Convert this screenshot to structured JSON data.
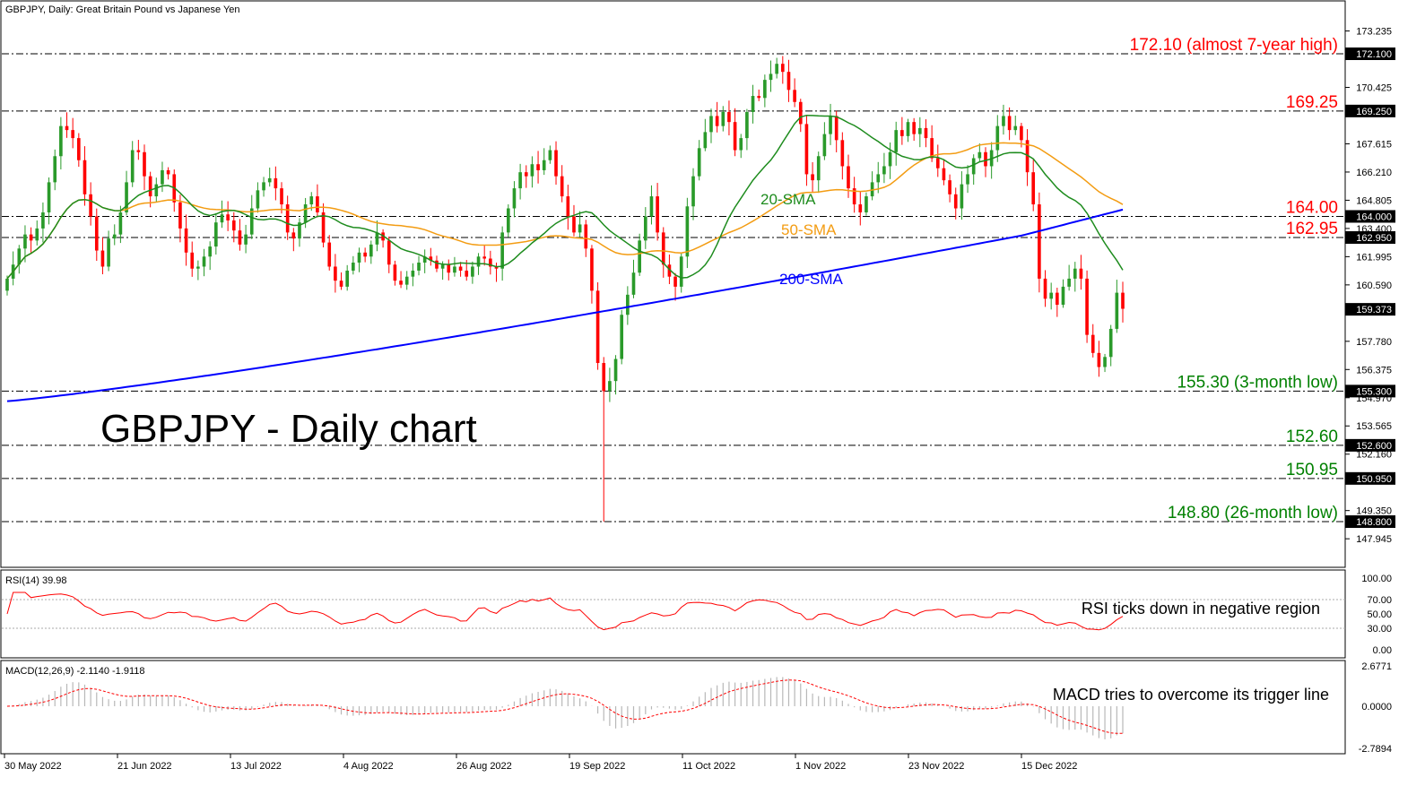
{
  "header": {
    "title": "GBPJPY, Daily:  Great Britain Pound vs Japanese Yen"
  },
  "main_label": "GBPJPY - Daily chart",
  "price_scale": [
    "173.235",
    "172.100",
    "170.425",
    "169.250",
    "167.615",
    "166.210",
    "164.805",
    "164.000",
    "163.400",
    "162.950",
    "161.995",
    "160.590",
    "159.373",
    "157.780",
    "156.375",
    "155.300",
    "154.970",
    "153.565",
    "152.600",
    "152.160",
    "150.950",
    "149.350",
    "148.800",
    "147.945"
  ],
  "date_labels": [
    "30 May 2022",
    "21 Jun 2022",
    "13 Jul 2022",
    "4 Aug 2022",
    "26 Aug 2022",
    "19 Sep 2022",
    "11 Oct 2022",
    "1 Nov 2022",
    "23 Nov 2022",
    "15 Dec 2022"
  ],
  "levels": [
    {
      "value": 172.1,
      "text": "172.10 (almost 7-year high)",
      "color": "#ff0000",
      "badge": "172.100"
    },
    {
      "value": 169.25,
      "text": "169.25",
      "color": "#ff0000",
      "badge": "169.250"
    },
    {
      "value": 164.0,
      "text": "164.00",
      "color": "#ff0000",
      "badge": "164.000"
    },
    {
      "value": 162.95,
      "text": "162.95",
      "color": "#ff0000",
      "badge": "162.950"
    },
    {
      "value": 155.3,
      "text": "155.30 (3-month low)",
      "color": "#008000",
      "badge": "155.300"
    },
    {
      "value": 152.6,
      "text": "152.60",
      "color": "#008000",
      "badge": "152.600"
    },
    {
      "value": 150.95,
      "text": "150.95",
      "color": "#008000",
      "badge": "150.950"
    },
    {
      "value": 148.8,
      "text": "148.80 (26-month low)",
      "color": "#008000",
      "badge": "148.800"
    }
  ],
  "current_price": "159.373",
  "sma_labels": {
    "sma20": "20-SMA",
    "sma50": "50-SMA",
    "sma200": "200-SMA"
  },
  "colors": {
    "up": "#2a9a2a",
    "down": "#ff0000",
    "sma20": "#1e8c1e",
    "sma50": "#f39c12",
    "sma200": "#0000ff",
    "rsi": "#ff0000",
    "macd_signal": "#ff0000",
    "macd_hist": "#b8b8b8"
  },
  "rsi": {
    "label": "RSI(14) 39.98",
    "note": "RSI ticks down in negative region",
    "scale": [
      "100.00",
      "70.00",
      "50.00",
      "30.00",
      "0.00"
    ]
  },
  "macd": {
    "label": "MACD(12,26,9) -2.1140 -1.9118",
    "note": "MACD tries to overcome its trigger line",
    "scale": [
      "2.6771",
      "0.0000",
      "-2.7894"
    ]
  },
  "chart_data": {
    "type": "candlestick",
    "title": "GBPJPY - Daily chart",
    "x_range": [
      "30 May 2022",
      "10 Jan 2023"
    ],
    "ylim": [
      147.2,
      174.0
    ],
    "closes": [
      160.9,
      161.6,
      162.4,
      163.1,
      162.8,
      163.4,
      164.2,
      165.7,
      167.0,
      168.5,
      168.3,
      167.9,
      166.8,
      165.1,
      164.0,
      162.3,
      161.5,
      162.9,
      163.1,
      164.2,
      165.7,
      167.3,
      167.2,
      166.0,
      165.0,
      165.6,
      166.3,
      166.1,
      164.7,
      163.4,
      162.2,
      161.4,
      161.5,
      162.0,
      162.5,
      163.7,
      164.1,
      163.8,
      163.3,
      162.6,
      163.1,
      164.4,
      165.3,
      165.7,
      165.9,
      165.4,
      164.6,
      163.2,
      162.9,
      163.7,
      164.6,
      165.0,
      164.2,
      162.7,
      161.5,
      160.8,
      160.5,
      161.3,
      161.7,
      162.2,
      162.0,
      162.6,
      163.2,
      162.8,
      161.6,
      160.8,
      160.6,
      161.0,
      161.3,
      161.7,
      162.0,
      161.8,
      161.4,
      161.6,
      161.2,
      161.5,
      161.3,
      161.0,
      161.5,
      162.0,
      161.9,
      161.5,
      161.4,
      163.2,
      164.4,
      165.4,
      166.2,
      166.0,
      166.6,
      166.3,
      166.8,
      167.3,
      166.0,
      165.0,
      164.0,
      163.2,
      163.6,
      162.4,
      160.3,
      156.7,
      155.3,
      155.8,
      156.9,
      159.1,
      160.1,
      161.2,
      162.8,
      164.0,
      165.0,
      163.2,
      161.6,
      161.0,
      160.5,
      162.0,
      164.5,
      166.0,
      167.4,
      168.2,
      169.0,
      168.5,
      169.2,
      168.7,
      167.3,
      167.9,
      169.2,
      170.0,
      169.9,
      170.8,
      171.1,
      171.6,
      171.2,
      170.3,
      169.7,
      168.6,
      166.1,
      165.8,
      167.0,
      168.1,
      169.0,
      167.8,
      166.5,
      165.4,
      164.6,
      164.2,
      165.0,
      165.7,
      166.1,
      166.5,
      167.2,
      168.3,
      168.0,
      168.7,
      168.1,
      168.4,
      167.9,
      166.9,
      166.4,
      165.8,
      165.1,
      164.4,
      165.6,
      166.1,
      166.9,
      167.2,
      166.5,
      167.3,
      168.5,
      169.0,
      168.3,
      168.5,
      167.8,
      166.2,
      164.6,
      160.9,
      159.9,
      160.2,
      159.6,
      160.5,
      160.9,
      161.4,
      160.9,
      158.1,
      157.2,
      156.5,
      157.0,
      158.4,
      160.2,
      159.4
    ]
  }
}
